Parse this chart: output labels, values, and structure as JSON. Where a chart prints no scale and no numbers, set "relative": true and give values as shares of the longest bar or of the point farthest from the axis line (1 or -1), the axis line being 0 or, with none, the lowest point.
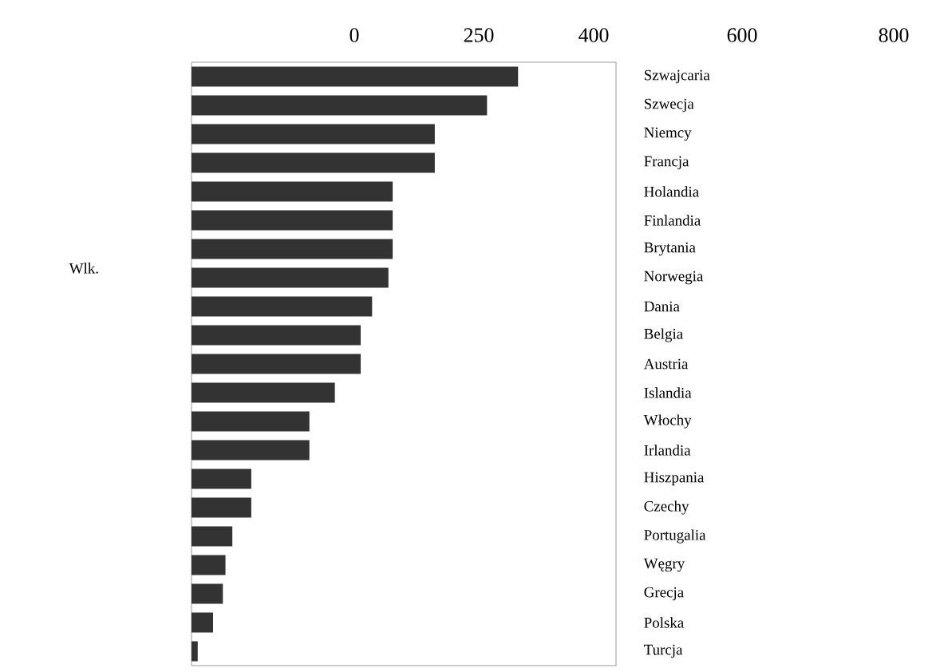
{
  "chart_data": {
    "type": "bar",
    "orientation": "horizontal",
    "relative": true,
    "color": "#333333",
    "categories": [
      "Szwajcaria",
      "Szwecja",
      "Niemcy",
      "Francja",
      "Holandia",
      "Finlandia",
      "Brytania",
      "Norwegia",
      "Dania",
      "Belgia",
      "Austria",
      "Islandia",
      "Włochy",
      "Irlandia",
      "Hiszpania",
      "Czechy",
      "Portugalia",
      "Węgry",
      "Grecja",
      "Polska",
      "Turcja"
    ],
    "values": [
      1,
      0.905,
      0.745,
      0.745,
      0.616,
      0.616,
      0.616,
      0.603,
      0.553,
      0.518,
      0.518,
      0.439,
      0.361,
      0.361,
      0.183,
      0.183,
      0.125,
      0.104,
      0.096,
      0.066,
      0.019
    ],
    "annotations": [
      "0",
      "250",
      "400",
      "600",
      "800",
      "Wlk."
    ]
  }
}
